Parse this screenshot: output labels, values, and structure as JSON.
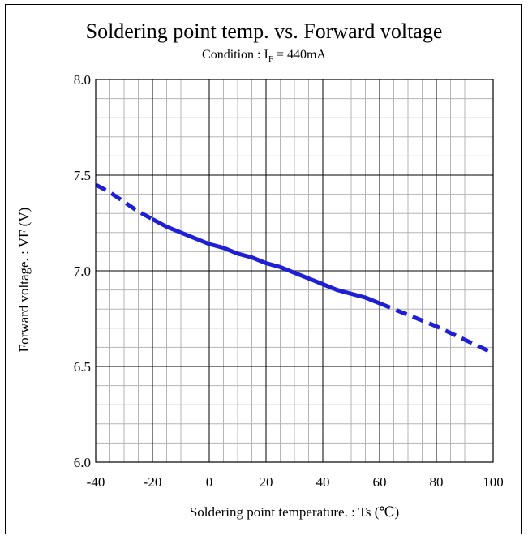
{
  "chart_data": {
    "type": "line",
    "title": "Soldering point temp. vs. Forward voltage",
    "subtitle": {
      "prefix": "Condition : I",
      "sub": "F",
      "suffix": " = 440mA"
    },
    "xlabel": "Soldering point temperature. : Ts (℃)",
    "ylabel": "Forward voltage. : VF (V)",
    "xlim": [
      -40,
      100
    ],
    "ylim": [
      6.0,
      8.0
    ],
    "x_ticks": [
      -40,
      -20,
      0,
      20,
      40,
      60,
      80,
      100
    ],
    "y_ticks": [
      "6.0",
      "6.5",
      "7.0",
      "7.5",
      "8.0"
    ],
    "x_tick_labels": [
      "-40",
      "-20",
      "0",
      "20",
      "40",
      "60",
      "80",
      "100"
    ],
    "grid": true,
    "series": [
      {
        "color": "#1f1fd6",
        "segments": [
          {
            "style": "dashed",
            "x": [
              -40,
              -35,
              -30,
              -25,
              -20
            ],
            "y": [
              7.45,
              7.41,
              7.36,
              7.31,
              7.27
            ]
          },
          {
            "style": "solid",
            "x": [
              -20,
              -15,
              -10,
              -5,
              0,
              5,
              10,
              15,
              20,
              25,
              30,
              35,
              40,
              45,
              50,
              55,
              60
            ],
            "y": [
              7.27,
              7.23,
              7.2,
              7.17,
              7.14,
              7.12,
              7.09,
              7.07,
              7.04,
              7.02,
              6.99,
              6.96,
              6.93,
              6.9,
              6.88,
              6.86,
              6.83
            ]
          },
          {
            "style": "dashed",
            "x": [
              60,
              70,
              80,
              90,
              100
            ],
            "y": [
              6.83,
              6.77,
              6.71,
              6.64,
              6.57
            ]
          }
        ]
      }
    ]
  }
}
